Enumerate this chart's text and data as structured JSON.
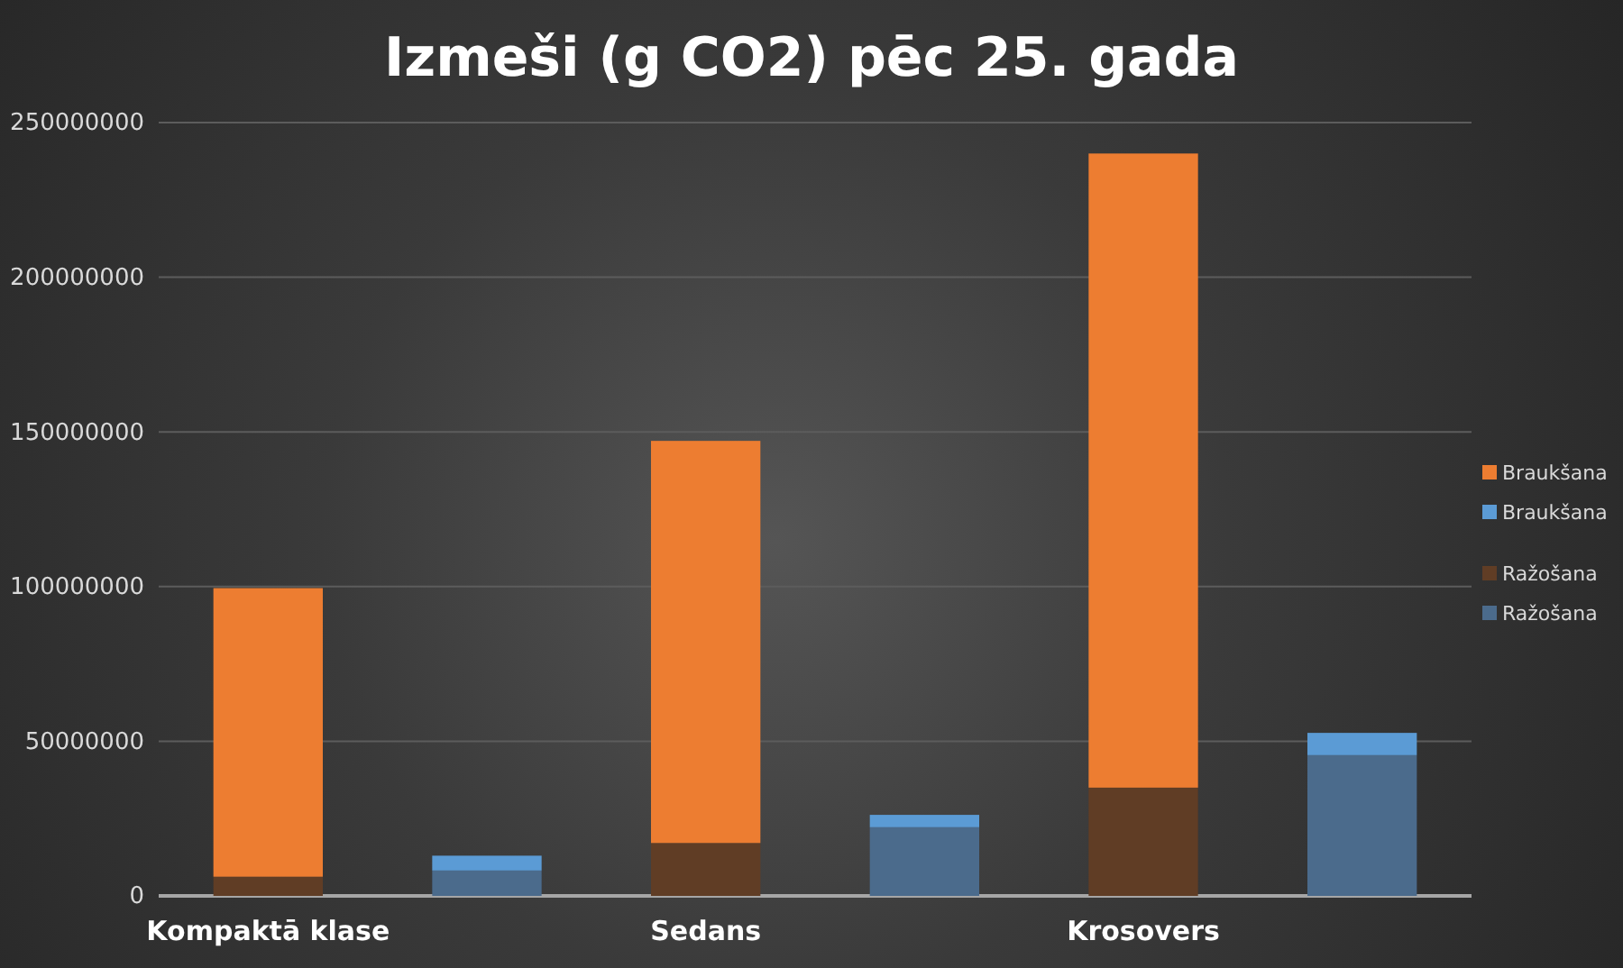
{
  "chart_data": {
    "type": "bar",
    "title": "Izmeši (g CO2) pēc 25. gada",
    "categories": [
      "Kompaktā klase",
      null,
      "Sedans",
      null,
      "Krosovers",
      null
    ],
    "series": [
      {
        "name": "Ražošana",
        "color": "#4b6b8c",
        "values": [
          null,
          8200000.0,
          null,
          22200000.0,
          null,
          45500000.0
        ]
      },
      {
        "name": "Ražošana",
        "color": "#603d25",
        "values": [
          6200000.0,
          null,
          17100000.0,
          null,
          35000000.0,
          null
        ]
      },
      {
        "name": "Braukšana",
        "color": "#5b9bd5",
        "values": [
          null,
          4800000.0,
          null,
          4000000.0,
          null,
          7200000.0
        ]
      },
      {
        "name": "Braukšana",
        "color": "#ed7d31",
        "values": [
          93300000.0,
          null,
          130000000.0,
          null,
          205000000.0,
          null
        ]
      }
    ],
    "stacked": true,
    "ylim": [
      0,
      250000000
    ],
    "yticks": [
      0,
      50000000,
      100000000,
      150000000,
      200000000,
      250000000
    ],
    "grid": "y",
    "legend": "right"
  }
}
